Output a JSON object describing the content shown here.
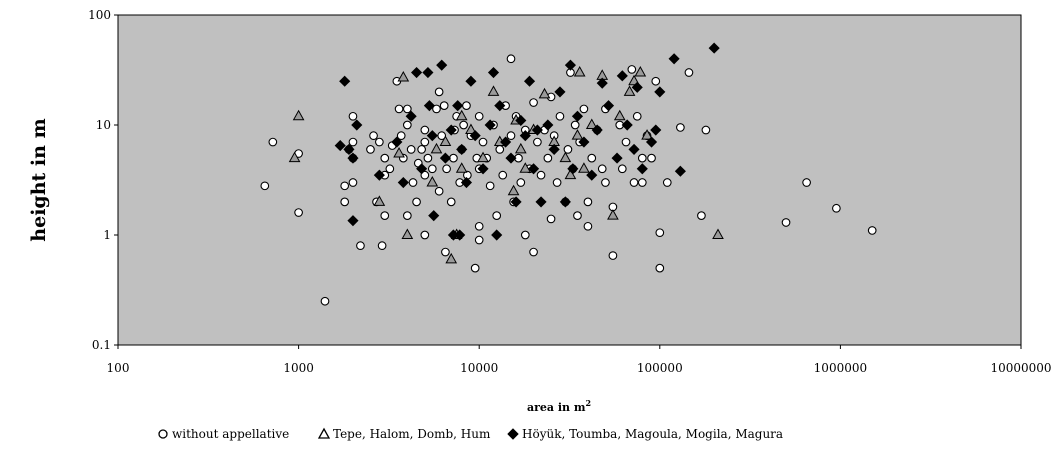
{
  "chart_data": {
    "type": "scatter",
    "title": "",
    "xlabel": "area in m",
    "xlabel_superscript": "2",
    "ylabel": "height in m",
    "x_scale": "log",
    "y_scale": "log",
    "xlim": [
      100,
      10000000
    ],
    "ylim": [
      0.1,
      100
    ],
    "x_ticks": [
      "100",
      "1000",
      "10000",
      "100000",
      "1000000",
      "10000000"
    ],
    "y_ticks": [
      "0.1",
      "1",
      "10",
      "100"
    ],
    "grid": false,
    "plot_background": "#c0c0c0",
    "legend_position": "bottom",
    "series": [
      {
        "name": "without appellative",
        "marker": "circle",
        "fill": "#ffffff",
        "stroke": "#000000",
        "points": [
          [
            650,
            2.8
          ],
          [
            720,
            7
          ],
          [
            1000,
            1.6
          ],
          [
            1000,
            5.5
          ],
          [
            1400,
            0.25
          ],
          [
            1800,
            2.8
          ],
          [
            1800,
            2
          ],
          [
            1900,
            6
          ],
          [
            2000,
            3
          ],
          [
            2000,
            5
          ],
          [
            2000,
            7
          ],
          [
            2000,
            12
          ],
          [
            2200,
            0.8
          ],
          [
            2500,
            6
          ],
          [
            2600,
            8
          ],
          [
            2700,
            2
          ],
          [
            2800,
            7
          ],
          [
            2900,
            0.8
          ],
          [
            3000,
            1.5
          ],
          [
            3000,
            3.5
          ],
          [
            3000,
            5
          ],
          [
            3200,
            4
          ],
          [
            3300,
            6.5
          ],
          [
            3500,
            25
          ],
          [
            3600,
            14
          ],
          [
            3700,
            8
          ],
          [
            3800,
            5
          ],
          [
            4000,
            10
          ],
          [
            4000,
            14
          ],
          [
            4000,
            1.5
          ],
          [
            4200,
            6
          ],
          [
            4300,
            3
          ],
          [
            4500,
            2
          ],
          [
            4600,
            4.5
          ],
          [
            4800,
            6
          ],
          [
            5000,
            3.5
          ],
          [
            5000,
            7
          ],
          [
            5000,
            9
          ],
          [
            5000,
            1
          ],
          [
            5200,
            5
          ],
          [
            5500,
            4
          ],
          [
            5800,
            14
          ],
          [
            6000,
            20
          ],
          [
            6000,
            2.5
          ],
          [
            6200,
            8
          ],
          [
            6400,
            15
          ],
          [
            6500,
            0.7
          ],
          [
            6600,
            4
          ],
          [
            7000,
            2
          ],
          [
            7200,
            5
          ],
          [
            7300,
            9
          ],
          [
            7500,
            12
          ],
          [
            7800,
            3
          ],
          [
            8000,
            6
          ],
          [
            8200,
            10
          ],
          [
            8500,
            15
          ],
          [
            8600,
            3.5
          ],
          [
            9000,
            8
          ],
          [
            9500,
            0.5
          ],
          [
            9700,
            5
          ],
          [
            10000,
            0.9
          ],
          [
            10000,
            1.2
          ],
          [
            10000,
            4
          ],
          [
            10000,
            12
          ],
          [
            10500,
            7
          ],
          [
            11000,
            5
          ],
          [
            11500,
            2.8
          ],
          [
            12000,
            10
          ],
          [
            12500,
            1.5
          ],
          [
            13000,
            6
          ],
          [
            13500,
            3.5
          ],
          [
            14000,
            15
          ],
          [
            15000,
            40
          ],
          [
            15000,
            8
          ],
          [
            15500,
            2
          ],
          [
            16000,
            12
          ],
          [
            16500,
            5
          ],
          [
            17000,
            3
          ],
          [
            18000,
            9
          ],
          [
            18000,
            1
          ],
          [
            19000,
            4
          ],
          [
            20000,
            16
          ],
          [
            20000,
            0.7
          ],
          [
            21000,
            7
          ],
          [
            22000,
            3.5
          ],
          [
            23000,
            9
          ],
          [
            24000,
            5
          ],
          [
            25000,
            1.4
          ],
          [
            25000,
            18
          ],
          [
            26000,
            8
          ],
          [
            27000,
            3
          ],
          [
            28000,
            12
          ],
          [
            30000,
            2
          ],
          [
            31000,
            6
          ],
          [
            32000,
            30
          ],
          [
            33000,
            4
          ],
          [
            34000,
            10
          ],
          [
            35000,
            1.5
          ],
          [
            36000,
            7
          ],
          [
            38000,
            14
          ],
          [
            40000,
            2
          ],
          [
            40000,
            1.2
          ],
          [
            42000,
            5
          ],
          [
            45000,
            9
          ],
          [
            48000,
            4
          ],
          [
            50000,
            14
          ],
          [
            50000,
            3
          ],
          [
            55000,
            1.8
          ],
          [
            55000,
            0.65
          ],
          [
            60000,
            10
          ],
          [
            62000,
            4
          ],
          [
            65000,
            7
          ],
          [
            70000,
            32
          ],
          [
            72000,
            3
          ],
          [
            75000,
            12
          ],
          [
            80000,
            5
          ],
          [
            80000,
            3
          ],
          [
            85000,
            8
          ],
          [
            90000,
            5
          ],
          [
            95000,
            25
          ],
          [
            100000,
            1.05
          ],
          [
            100000,
            0.5
          ],
          [
            110000,
            3
          ],
          [
            130000,
            9.5
          ],
          [
            145000,
            30
          ],
          [
            170000,
            1.5
          ],
          [
            180000,
            9
          ],
          [
            500000,
            1.3
          ],
          [
            650000,
            3
          ],
          [
            950000,
            1.75
          ],
          [
            1500000,
            1.1
          ]
        ]
      },
      {
        "name": "Tepe, Halom, Domb, Hum",
        "marker": "triangle",
        "fill": "#9a9a9a",
        "stroke": "#000000",
        "points": [
          [
            950,
            5
          ],
          [
            1000,
            12
          ],
          [
            2800,
            2
          ],
          [
            3600,
            5.5
          ],
          [
            3800,
            27
          ],
          [
            4000,
            1
          ],
          [
            5500,
            3
          ],
          [
            5800,
            6
          ],
          [
            6500,
            7
          ],
          [
            7000,
            0.6
          ],
          [
            7500,
            1
          ],
          [
            8000,
            4
          ],
          [
            8000,
            12
          ],
          [
            9000,
            9
          ],
          [
            10500,
            5
          ],
          [
            12000,
            20
          ],
          [
            13000,
            7
          ],
          [
            15500,
            2.5
          ],
          [
            16000,
            11
          ],
          [
            17000,
            6
          ],
          [
            18000,
            4
          ],
          [
            20000,
            9
          ],
          [
            23000,
            19
          ],
          [
            26000,
            7
          ],
          [
            30000,
            5
          ],
          [
            32000,
            3.5
          ],
          [
            35000,
            8
          ],
          [
            36000,
            30
          ],
          [
            38000,
            4
          ],
          [
            42000,
            10
          ],
          [
            48000,
            28
          ],
          [
            55000,
            1.5
          ],
          [
            60000,
            12
          ],
          [
            68000,
            20
          ],
          [
            72000,
            25
          ],
          [
            78000,
            30
          ],
          [
            85000,
            8
          ],
          [
            210000,
            1
          ]
        ]
      },
      {
        "name": "Höyük, Toumba, Magoula, Mogila, Magura",
        "marker": "diamond",
        "fill": "#000000",
        "stroke": "#000000",
        "points": [
          [
            1700,
            6.5
          ],
          [
            1800,
            25
          ],
          [
            1900,
            6
          ],
          [
            2000,
            5
          ],
          [
            2000,
            1.35
          ],
          [
            2100,
            10
          ],
          [
            2800,
            3.5
          ],
          [
            3500,
            7
          ],
          [
            3800,
            3
          ],
          [
            4200,
            12
          ],
          [
            4500,
            30
          ],
          [
            4800,
            4
          ],
          [
            5200,
            30
          ],
          [
            5300,
            15
          ],
          [
            5500,
            8
          ],
          [
            5600,
            1.5
          ],
          [
            6200,
            35
          ],
          [
            6500,
            5
          ],
          [
            7000,
            9
          ],
          [
            7200,
            1
          ],
          [
            7800,
            1
          ],
          [
            7600,
            15
          ],
          [
            8000,
            6
          ],
          [
            8500,
            3
          ],
          [
            9000,
            25
          ],
          [
            9500,
            8
          ],
          [
            10500,
            4
          ],
          [
            11500,
            10
          ],
          [
            12000,
            30
          ],
          [
            12500,
            1
          ],
          [
            13000,
            15
          ],
          [
            14000,
            7
          ],
          [
            15000,
            5
          ],
          [
            16000,
            2
          ],
          [
            17000,
            11
          ],
          [
            18000,
            8
          ],
          [
            19000,
            25
          ],
          [
            20000,
            4
          ],
          [
            21000,
            9
          ],
          [
            22000,
            2
          ],
          [
            24000,
            10
          ],
          [
            26000,
            6
          ],
          [
            28000,
            20
          ],
          [
            30000,
            2
          ],
          [
            32000,
            35
          ],
          [
            33000,
            4
          ],
          [
            35000,
            12
          ],
          [
            38000,
            7
          ],
          [
            42000,
            3.5
          ],
          [
            45000,
            9
          ],
          [
            48000,
            24
          ],
          [
            52000,
            15
          ],
          [
            58000,
            5
          ],
          [
            62000,
            28
          ],
          [
            66000,
            10
          ],
          [
            72000,
            6
          ],
          [
            75000,
            22
          ],
          [
            80000,
            4
          ],
          [
            90000,
            7
          ],
          [
            95000,
            9
          ],
          [
            100000,
            20
          ],
          [
            120000,
            40
          ],
          [
            130000,
            3.8
          ],
          [
            200000,
            50
          ]
        ]
      }
    ]
  }
}
